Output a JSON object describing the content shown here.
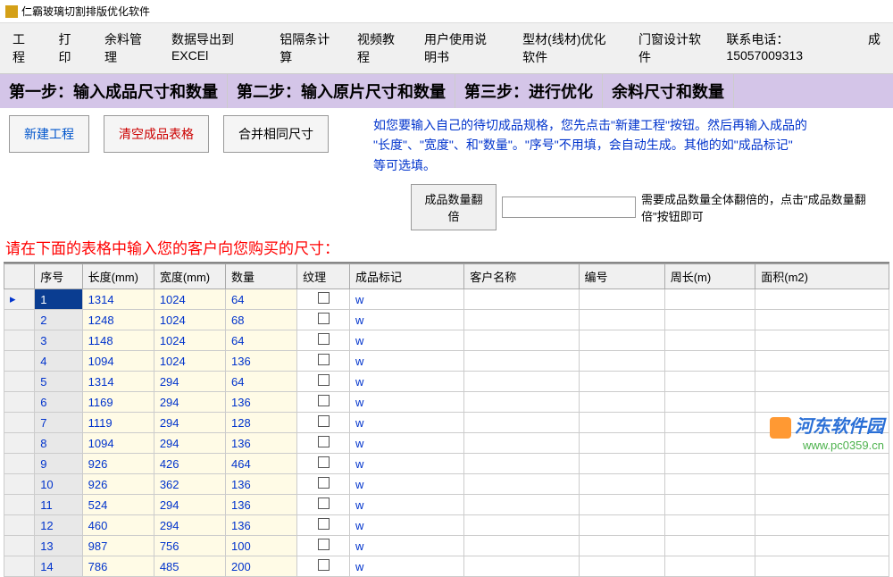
{
  "window": {
    "title": "仁霸玻璃切割排版优化软件"
  },
  "menu": {
    "items": [
      "工程",
      "打印",
      "余料管理",
      "数据导出到EXCEl",
      "铝隔条计算",
      "视频教程",
      "用户使用说明书",
      "型材(线材)优化软件",
      "门窗设计软件",
      "联系电话：15057009313",
      "成"
    ]
  },
  "steps": {
    "s1": "第一步：输入成品尺寸和数量",
    "s2": "第二步：输入原片尺寸和数量",
    "s3": "第三步：进行优化",
    "s4": "余料尺寸和数量"
  },
  "buttons": {
    "new_project": "新建工程",
    "clear_table": "清空成品表格",
    "merge_same": "合并相同尺寸",
    "multiply": "成品数量翻倍"
  },
  "hints": {
    "main1": "如您要输入自己的待切成品规格，您先点击\"新建工程\"按钮。然后再输入成品的",
    "main2": "\"长度\"、\"宽度\"、和\"数量\"。\"序号\"不用填，会自动生成。其他的如\"成品标记\"",
    "main3": "等可选填。",
    "multiply_hint": "需要成品数量全体翻倍的，点击\"成品数量翻倍\"按钮即可",
    "red_prompt": "请在下面的表格中输入您的客户向您购买的尺寸："
  },
  "table": {
    "headers": {
      "seq": "序号",
      "len": "长度(mm)",
      "wid": "宽度(mm)",
      "qty": "数量",
      "tex": "纹理",
      "mark": "成品标记",
      "cust": "客户名称",
      "num": "编号",
      "peri": "周长(m)",
      "area": "面积(m2)"
    },
    "rows": [
      {
        "seq": "1",
        "len": "1314",
        "wid": "1024",
        "qty": "64",
        "mark": "w"
      },
      {
        "seq": "2",
        "len": "1248",
        "wid": "1024",
        "qty": "68",
        "mark": "w"
      },
      {
        "seq": "3",
        "len": "1148",
        "wid": "1024",
        "qty": "64",
        "mark": "w"
      },
      {
        "seq": "4",
        "len": "1094",
        "wid": "1024",
        "qty": "136",
        "mark": "w"
      },
      {
        "seq": "5",
        "len": "1314",
        "wid": "294",
        "qty": "64",
        "mark": "w"
      },
      {
        "seq": "6",
        "len": "1169",
        "wid": "294",
        "qty": "136",
        "mark": "w"
      },
      {
        "seq": "7",
        "len": "1119",
        "wid": "294",
        "qty": "128",
        "mark": "w"
      },
      {
        "seq": "8",
        "len": "1094",
        "wid": "294",
        "qty": "136",
        "mark": "w"
      },
      {
        "seq": "9",
        "len": "926",
        "wid": "426",
        "qty": "464",
        "mark": "w"
      },
      {
        "seq": "10",
        "len": "926",
        "wid": "362",
        "qty": "136",
        "mark": "w"
      },
      {
        "seq": "11",
        "len": "524",
        "wid": "294",
        "qty": "136",
        "mark": "w"
      },
      {
        "seq": "12",
        "len": "460",
        "wid": "294",
        "qty": "136",
        "mark": "w"
      },
      {
        "seq": "13",
        "len": "987",
        "wid": "756",
        "qty": "100",
        "mark": "w"
      },
      {
        "seq": "14",
        "len": "786",
        "wid": "485",
        "qty": "200",
        "mark": "w"
      }
    ]
  },
  "watermark": {
    "name": "河东软件园",
    "url": "www.pc0359.cn"
  },
  "colors": {
    "step_bg": "#d4c5e8",
    "hint_text": "#0033cc",
    "red_text": "#ff0000",
    "cell_yellow": "#fffbe6",
    "selected_bg": "#0a3d91"
  }
}
